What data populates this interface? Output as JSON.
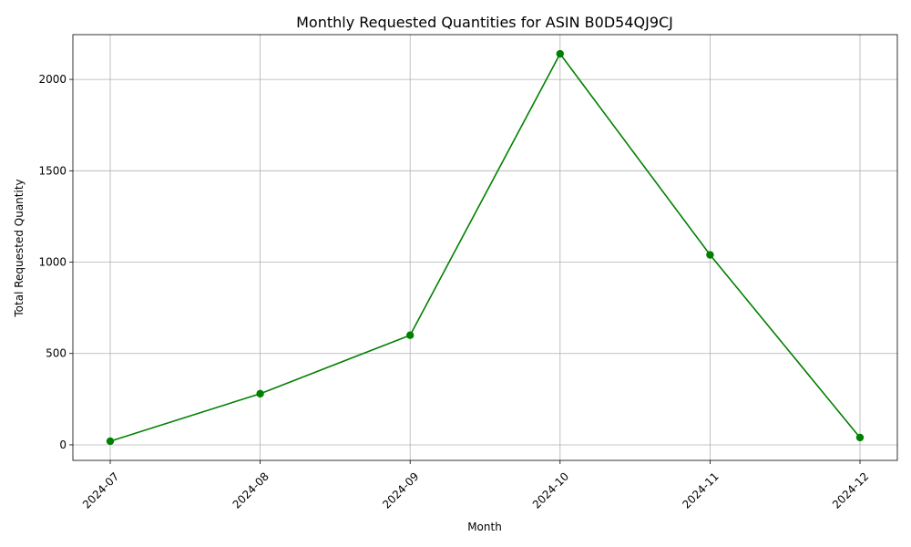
{
  "chart_data": {
    "type": "line",
    "title": "Monthly Requested Quantities for ASIN B0D54QJ9CJ",
    "xlabel": "Month",
    "ylabel": "Total Requested Quantity",
    "categories": [
      "2024-07",
      "2024-08",
      "2024-09",
      "2024-10",
      "2024-11",
      "2024-12"
    ],
    "series": [
      {
        "values": [
          20,
          280,
          600,
          2140,
          1040,
          40
        ],
        "color": "#008000",
        "marker": "circle"
      }
    ],
    "ylim": [
      -85,
      2245
    ],
    "yticks": [
      0,
      500,
      1000,
      1500,
      2000
    ],
    "grid": true,
    "xtick_rotation": 45
  }
}
